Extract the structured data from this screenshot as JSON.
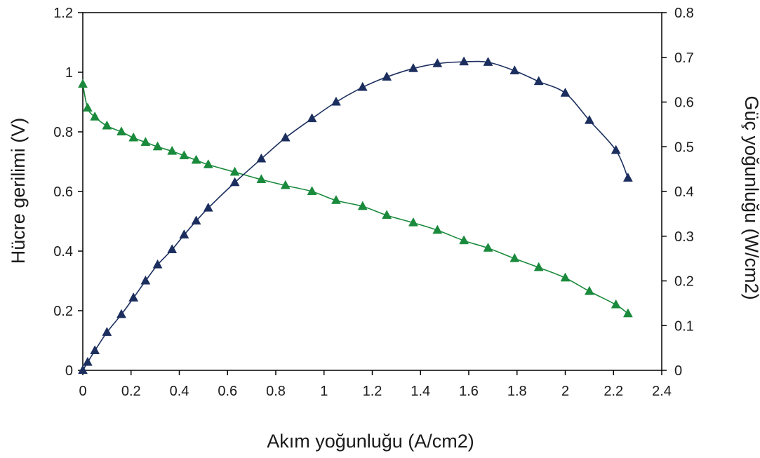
{
  "chart_data": {
    "type": "line",
    "xlabel": "Akım yoğunluğu (A/cm2)",
    "ylabel_left": "Hücre gerilimi (V)",
    "ylabel_right": "Güç yoğunluğu (W/cm2)",
    "xlim": [
      0,
      2.4
    ],
    "ylim_left": [
      0,
      1.2
    ],
    "ylim_right": [
      0,
      0.8
    ],
    "x_ticks": [
      "0",
      "0.2",
      "0.4",
      "0.6",
      "0.8",
      "1",
      "1.2",
      "1.4",
      "1.6",
      "1.8",
      "2",
      "2.2",
      "2.4"
    ],
    "y_left_ticks": [
      "0",
      "0.2",
      "0.4",
      "0.6",
      "0.8",
      "1",
      "1.2"
    ],
    "y_right_ticks": [
      "0",
      "0.1",
      "0.2",
      "0.3",
      "0.4",
      "0.5",
      "0.6",
      "0.7",
      "0.8"
    ],
    "grid": false,
    "series": [
      {
        "axis": "left",
        "color": "#1a8a3c",
        "marker": "triangle",
        "x": [
          0,
          0.02,
          0.05,
          0.1,
          0.16,
          0.21,
          0.26,
          0.31,
          0.37,
          0.42,
          0.47,
          0.52,
          0.63,
          0.74,
          0.84,
          0.95,
          1.05,
          1.16,
          1.26,
          1.37,
          1.47,
          1.58,
          1.68,
          1.79,
          1.89,
          2.0,
          2.1,
          2.21,
          2.26
        ],
        "y": [
          0.96,
          0.88,
          0.85,
          0.82,
          0.8,
          0.78,
          0.765,
          0.75,
          0.735,
          0.72,
          0.705,
          0.69,
          0.665,
          0.64,
          0.62,
          0.6,
          0.57,
          0.55,
          0.52,
          0.495,
          0.47,
          0.435,
          0.41,
          0.375,
          0.345,
          0.31,
          0.265,
          0.22,
          0.19
        ]
      },
      {
        "axis": "right",
        "color": "#1b2e5e",
        "marker": "triangle",
        "x": [
          0,
          0.02,
          0.05,
          0.1,
          0.16,
          0.21,
          0.26,
          0.31,
          0.37,
          0.42,
          0.47,
          0.52,
          0.63,
          0.74,
          0.84,
          0.95,
          1.05,
          1.16,
          1.26,
          1.37,
          1.47,
          1.58,
          1.68,
          1.79,
          1.89,
          2.0,
          2.1,
          2.21,
          2.26
        ],
        "y": [
          0,
          0.018,
          0.044,
          0.085,
          0.125,
          0.162,
          0.2,
          0.236,
          0.27,
          0.303,
          0.334,
          0.363,
          0.42,
          0.473,
          0.52,
          0.563,
          0.6,
          0.633,
          0.656,
          0.675,
          0.686,
          0.69,
          0.689,
          0.67,
          0.646,
          0.62,
          0.559,
          0.492,
          0.43
        ]
      }
    ]
  }
}
